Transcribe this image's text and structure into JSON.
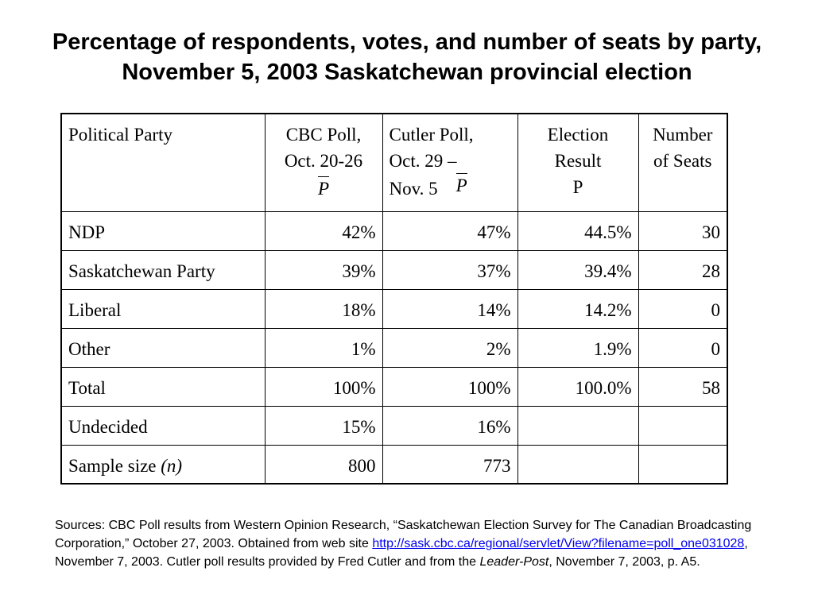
{
  "title": "Percentage of respondents, votes, and number of seats by party, November 5, 2003 Saskatchewan provincial election",
  "table": {
    "headers": {
      "party": "Political Party",
      "cbc_line1": "CBC Poll,",
      "cbc_line2": "Oct. 20-26",
      "cbc_symbol": "P",
      "cutler_line1": "Cutler Poll,",
      "cutler_line2": "Oct. 29 –",
      "cutler_line3": "Nov. 5",
      "cutler_symbol": "P",
      "result_line1": "Election",
      "result_line2": "Result",
      "result_symbol": "P",
      "seats_line1": "Number",
      "seats_line2": "of Seats"
    },
    "rows": [
      {
        "party": "NDP",
        "cbc": "42%",
        "cutler": "47%",
        "result": "44.5%",
        "seats": "30"
      },
      {
        "party": "Saskatchewan Party",
        "cbc": "39%",
        "cutler": "37%",
        "result": "39.4%",
        "seats": "28"
      },
      {
        "party": "Liberal",
        "cbc": "18%",
        "cutler": "14%",
        "result": "14.2%",
        "seats": "0"
      },
      {
        "party": "Other",
        "cbc": "1%",
        "cutler": "2%",
        "result": "1.9%",
        "seats": "0"
      },
      {
        "party": "Total",
        "cbc": "100%",
        "cutler": "100%",
        "result": "100.0%",
        "seats": "58"
      },
      {
        "party": "Undecided",
        "cbc": "15%",
        "cutler": "16%",
        "result": "",
        "seats": ""
      },
      {
        "party": "Sample size",
        "party_suffix": "(n)",
        "cbc": "800",
        "cutler": "773",
        "result": "",
        "seats": ""
      }
    ]
  },
  "sources": {
    "part1": "Sources:  CBC Poll results from Western Opinion Research, “Saskatchewan Election Survey for The Canadian Broadcasting Corporation,” October 27, 2003.  Obtained from web site ",
    "link": "http://sask.cbc.ca/regional/servlet/View?filename=poll_one031028",
    "part2": ", November 7, 2003.     Cutler poll results provided by Fred Cutler and from the ",
    "publication": "Leader-Post",
    "part3": ", November 7, 2003, p. A5."
  }
}
